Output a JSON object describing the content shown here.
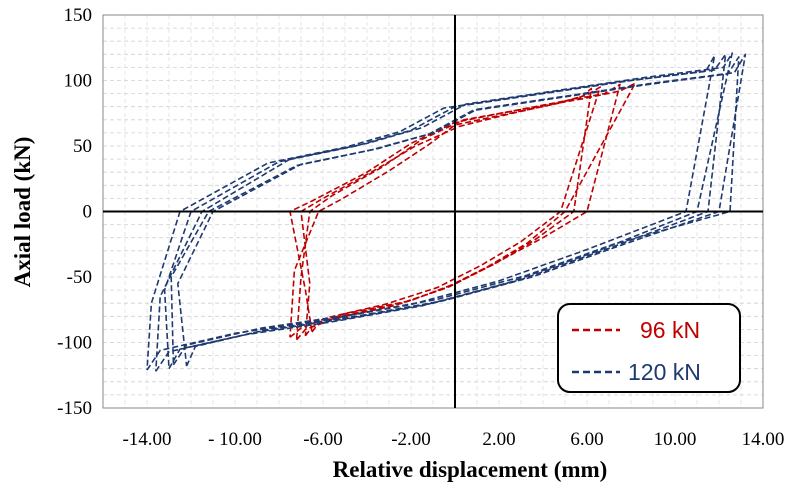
{
  "chart_data": {
    "type": "line",
    "title": "",
    "xlabel": "Relative displacement (mm)",
    "ylabel": "Axial load (kN)",
    "xlim": [
      -16,
      14
    ],
    "ylim": [
      -150,
      150
    ],
    "x_ticks": [
      -14,
      -10,
      -6,
      -2,
      2,
      6,
      10,
      14
    ],
    "x_tick_labels": [
      "-14.00",
      "- 10.00",
      "-6.00",
      "-2.00",
      "2.00",
      "6.00",
      "10.00",
      "14.00"
    ],
    "y_ticks": [
      -150,
      -100,
      -50,
      0,
      50,
      100,
      150
    ],
    "y_tick_labels": [
      "-150",
      "-100",
      "-50",
      "0",
      "50",
      "100",
      "150"
    ],
    "grid": true,
    "grid_style": "dashed",
    "legend_position": "bottom-right",
    "series": [
      {
        "name": "96 kN",
        "color": "#c00000",
        "line_style": "dashed",
        "loops": [
          {
            "x": [
              -6.5,
              -6.2,
              -5.0,
              -2.0,
              0.0,
              2.0,
              4.0,
              6.0,
              7.5,
              6.8,
              5.2,
              3.0,
              0.0,
              -2.0,
              -4.0,
              -6.5,
              -7.5,
              -6.8,
              -6.5
            ],
            "y": [
              -92,
              -85,
              -78,
              -68,
              -55,
              -38,
              -20,
              0,
              97,
              90,
              85,
              78,
              68,
              52,
              30,
              8,
              0,
              -60,
              -92
            ]
          },
          {
            "x": [
              -6.8,
              -6.5,
              -5.2,
              -2.4,
              -0.2,
              1.8,
              3.6,
              5.4,
              6.2,
              5.8,
              4.5,
              2.6,
              0.2,
              -1.8,
              -3.6,
              -6.0,
              -7.0,
              -6.6,
              -6.8
            ],
            "y": [
              -95,
              -88,
              -80,
              -70,
              -57,
              -40,
              -22,
              0,
              94,
              88,
              82,
              75,
              65,
              50,
              32,
              10,
              0,
              -55,
              -95
            ]
          },
          {
            "x": [
              -7.2,
              -6.8,
              -5.5,
              -2.8,
              -0.5,
              1.5,
              3.3,
              5.0,
              8.2,
              7.5,
              5.8,
              3.4,
              0.4,
              -1.5,
              -3.3,
              -5.6,
              -6.6,
              -7.0,
              -7.2
            ],
            "y": [
              -98,
              -90,
              -82,
              -72,
              -59,
              -42,
              -24,
              0,
              98,
              92,
              86,
              79,
              70,
              55,
              34,
              12,
              0,
              -50,
              -98
            ]
          },
          {
            "x": [
              -7.5,
              -7.0,
              -5.8,
              -3.2,
              -0.8,
              1.2,
              3.0,
              4.8,
              6.6,
              6.0,
              4.8,
              2.8,
              0.0,
              -1.2,
              -3.0,
              -5.2,
              -6.2,
              -7.3,
              -7.5
            ],
            "y": [
              -96,
              -89,
              -81,
              -71,
              -58,
              -41,
              -23,
              0,
              95,
              89,
              83,
              76,
              66,
              51,
              31,
              9,
              0,
              -45,
              -96
            ]
          }
        ]
      },
      {
        "name": "120 kN",
        "color": "#1f3a70",
        "line_style": "dashed",
        "loops": [
          {
            "x": [
              -13.0,
              -12.5,
              -9.0,
              -5.0,
              -1.0,
              3.0,
              7.0,
              11.5,
              12.3,
              11.8,
              8.0,
              4.0,
              0.0,
              -2.0,
              -4.5,
              -8.0,
              -12.0,
              -13.2,
              -13.0
            ],
            "y": [
              -120,
              -105,
              -92,
              -82,
              -70,
              -52,
              -28,
              0,
              120,
              108,
              100,
              90,
              80,
              62,
              50,
              38,
              0,
              -60,
              -120
            ]
          },
          {
            "x": [
              -13.6,
              -13.0,
              -9.5,
              -5.5,
              -1.5,
              2.5,
              6.5,
              11.0,
              12.6,
              12.2,
              8.5,
              4.5,
              0.5,
              -1.5,
              -4.0,
              -7.5,
              -11.5,
              -13.4,
              -13.6
            ],
            "y": [
              -122,
              -107,
              -94,
              -84,
              -72,
              -54,
              -30,
              0,
              121,
              110,
              102,
              92,
              82,
              64,
              52,
              40,
              0,
              -65,
              -122
            ]
          },
          {
            "x": [
              -12.2,
              -11.8,
              -8.5,
              -4.5,
              -0.5,
              3.5,
              7.5,
              12.0,
              13.2,
              12.7,
              9.0,
              5.0,
              1.0,
              -1.0,
              -3.5,
              -7.0,
              -11.0,
              -12.6,
              -12.2
            ],
            "y": [
              -118,
              -103,
              -90,
              -80,
              -68,
              -50,
              -26,
              0,
              120,
              106,
              98,
              88,
              78,
              60,
              48,
              36,
              0,
              -55,
              -118
            ]
          },
          {
            "x": [
              -14.0,
              -13.4,
              -10.0,
              -6.0,
              -2.0,
              2.0,
              6.0,
              10.5,
              11.8,
              11.4,
              7.5,
              3.5,
              -0.5,
              -2.5,
              -5.0,
              -8.5,
              -12.5,
              -13.8,
              -14.0
            ],
            "y": [
              -121,
              -106,
              -93,
              -83,
              -71,
              -53,
              -29,
              0,
              119,
              107,
              99,
              89,
              79,
              61,
              49,
              37,
              0,
              -70,
              -121
            ]
          },
          {
            "x": [
              -12.8,
              -12.2,
              -8.8,
              -4.8,
              -0.8,
              3.2,
              7.2,
              12.5,
              12.9,
              12.4,
              8.8,
              4.8,
              0.8,
              -1.2,
              -3.8,
              -7.2,
              -11.2,
              -12.9,
              -12.8
            ],
            "y": [
              -117,
              -102,
              -89,
              -79,
              -67,
              -49,
              -25,
              0,
              118,
              105,
              97,
              87,
              77,
              59,
              47,
              35,
              0,
              -50,
              -117
            ]
          }
        ]
      }
    ]
  },
  "legend": {
    "items": [
      {
        "label": "96 kN",
        "color": "#c00000"
      },
      {
        "label": "120 kN",
        "color": "#1f3a70"
      }
    ]
  }
}
